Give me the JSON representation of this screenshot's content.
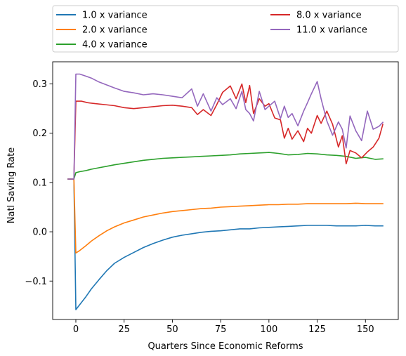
{
  "chart_data": {
    "type": "line",
    "title": "",
    "xlabel": "Quarters Since Economic Reforms",
    "ylabel": "Natl Saving Rate",
    "xlim": [
      -12,
      167
    ],
    "ylim": [
      -0.178,
      0.345
    ],
    "xticks": [
      0,
      25,
      50,
      75,
      100,
      125,
      150
    ],
    "xtick_labels": [
      "0",
      "25",
      "50",
      "75",
      "100",
      "125",
      "150"
    ],
    "yticks": [
      -0.1,
      0.0,
      0.1,
      0.2,
      0.3
    ],
    "ytick_labels": [
      "−0.1",
      "0.0",
      "0.1",
      "0.2",
      "0.3"
    ],
    "grid": false,
    "legend": {
      "placement": "top, above plot",
      "columns": 2
    },
    "series": [
      {
        "name": "1.0 x variance",
        "color": "#1f77b4",
        "x": [
          -4,
          -1,
          0,
          2,
          5,
          8,
          12,
          16,
          20,
          25,
          30,
          35,
          40,
          45,
          50,
          55,
          60,
          65,
          70,
          75,
          80,
          85,
          90,
          95,
          100,
          105,
          110,
          115,
          120,
          125,
          130,
          135,
          140,
          145,
          150,
          155,
          159
        ],
        "y": [
          0.107,
          0.107,
          -0.158,
          -0.148,
          -0.133,
          -0.116,
          -0.097,
          -0.079,
          -0.064,
          -0.052,
          -0.042,
          -0.032,
          -0.024,
          -0.017,
          -0.011,
          -0.007,
          -0.004,
          -0.001,
          0.001,
          0.002,
          0.004,
          0.006,
          0.006,
          0.008,
          0.009,
          0.01,
          0.011,
          0.012,
          0.013,
          0.013,
          0.013,
          0.012,
          0.012,
          0.012,
          0.013,
          0.012,
          0.012
        ]
      },
      {
        "name": "2.0 x variance",
        "color": "#ff7f0e",
        "x": [
          -4,
          -1,
          0,
          2,
          5,
          8,
          12,
          16,
          20,
          25,
          30,
          35,
          40,
          45,
          50,
          55,
          60,
          65,
          70,
          75,
          80,
          85,
          90,
          95,
          100,
          105,
          110,
          115,
          120,
          125,
          130,
          135,
          140,
          145,
          150,
          155,
          159
        ],
        "y": [
          0.107,
          0.107,
          -0.043,
          -0.038,
          -0.029,
          -0.019,
          -0.008,
          0.002,
          0.01,
          0.018,
          0.024,
          0.03,
          0.034,
          0.038,
          0.041,
          0.043,
          0.045,
          0.047,
          0.048,
          0.05,
          0.051,
          0.052,
          0.053,
          0.054,
          0.055,
          0.055,
          0.056,
          0.056,
          0.057,
          0.057,
          0.057,
          0.057,
          0.057,
          0.058,
          0.057,
          0.057,
          0.057
        ]
      },
      {
        "name": "4.0 x variance",
        "color": "#2ca02c",
        "x": [
          -4,
          -1,
          0,
          2,
          5,
          8,
          12,
          16,
          20,
          25,
          30,
          35,
          40,
          45,
          50,
          55,
          60,
          65,
          70,
          75,
          80,
          85,
          90,
          95,
          100,
          105,
          110,
          115,
          120,
          125,
          130,
          135,
          140,
          145,
          150,
          155,
          159
        ],
        "y": [
          0.107,
          0.107,
          0.12,
          0.122,
          0.124,
          0.127,
          0.13,
          0.133,
          0.136,
          0.139,
          0.142,
          0.145,
          0.147,
          0.149,
          0.15,
          0.151,
          0.152,
          0.153,
          0.154,
          0.155,
          0.156,
          0.158,
          0.159,
          0.16,
          0.161,
          0.159,
          0.156,
          0.157,
          0.159,
          0.158,
          0.156,
          0.155,
          0.153,
          0.149,
          0.151,
          0.147,
          0.148
        ]
      },
      {
        "name": "8.0 x variance",
        "color": "#d62728",
        "x": [
          -4,
          -1,
          0,
          3,
          6,
          10,
          15,
          20,
          25,
          30,
          35,
          40,
          45,
          50,
          55,
          60,
          63,
          66,
          70,
          73,
          76,
          80,
          83,
          86,
          88,
          90,
          92,
          95,
          98,
          100,
          103,
          106,
          108,
          110,
          112,
          115,
          118,
          120,
          122,
          125,
          127,
          130,
          133,
          136,
          138,
          140,
          142,
          145,
          148,
          151,
          154,
          157,
          159
        ],
        "y": [
          0.107,
          0.107,
          0.265,
          0.265,
          0.262,
          0.26,
          0.258,
          0.256,
          0.252,
          0.25,
          0.252,
          0.254,
          0.256,
          0.257,
          0.255,
          0.252,
          0.238,
          0.248,
          0.236,
          0.258,
          0.283,
          0.296,
          0.27,
          0.3,
          0.262,
          0.297,
          0.24,
          0.27,
          0.255,
          0.26,
          0.231,
          0.227,
          0.19,
          0.21,
          0.188,
          0.205,
          0.183,
          0.21,
          0.2,
          0.236,
          0.22,
          0.245,
          0.218,
          0.172,
          0.195,
          0.138,
          0.165,
          0.16,
          0.15,
          0.162,
          0.172,
          0.19,
          0.218
        ]
      },
      {
        "name": "11.0 x variance",
        "color": "#9467bd",
        "x": [
          -4,
          -1,
          0,
          2,
          5,
          8,
          12,
          16,
          20,
          25,
          30,
          35,
          40,
          45,
          50,
          55,
          60,
          63,
          66,
          70,
          73,
          76,
          80,
          83,
          86,
          88,
          90,
          92,
          95,
          98,
          100,
          103,
          106,
          108,
          110,
          112,
          115,
          118,
          120,
          122,
          125,
          127,
          130,
          133,
          136,
          138,
          140,
          142,
          145,
          148,
          151,
          154,
          157,
          159
        ],
        "y": [
          0.107,
          0.107,
          0.32,
          0.32,
          0.316,
          0.312,
          0.304,
          0.298,
          0.292,
          0.285,
          0.282,
          0.278,
          0.28,
          0.278,
          0.275,
          0.272,
          0.29,
          0.255,
          0.28,
          0.245,
          0.272,
          0.258,
          0.27,
          0.25,
          0.285,
          0.248,
          0.24,
          0.225,
          0.285,
          0.248,
          0.255,
          0.265,
          0.23,
          0.255,
          0.232,
          0.24,
          0.215,
          0.245,
          0.262,
          0.28,
          0.305,
          0.27,
          0.225,
          0.196,
          0.223,
          0.208,
          0.17,
          0.235,
          0.205,
          0.185,
          0.245,
          0.208,
          0.214,
          0.222
        ]
      }
    ]
  }
}
